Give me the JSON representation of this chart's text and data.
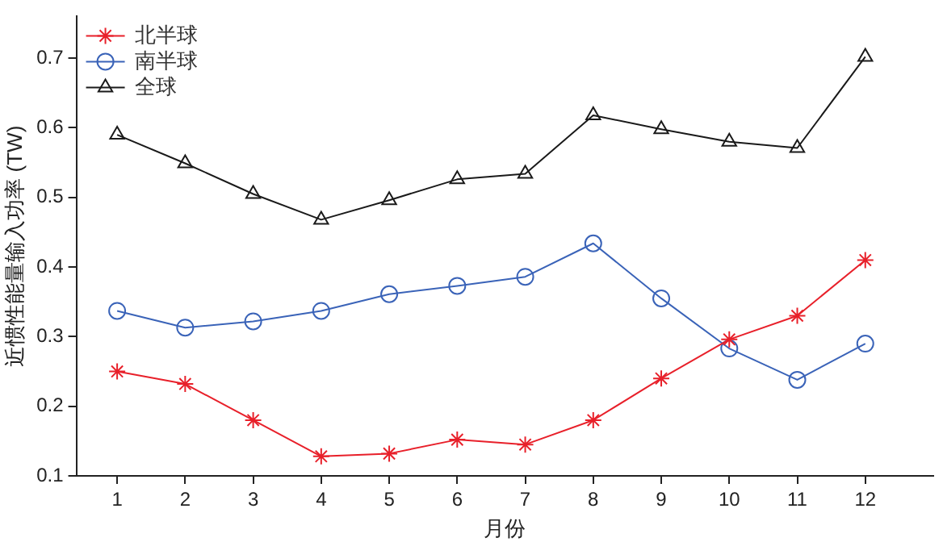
{
  "chart_data": {
    "type": "line",
    "xlabel": "月份",
    "ylabel": "近惯性能量输入功率 (TW)",
    "x": [
      1,
      2,
      3,
      4,
      5,
      6,
      7,
      8,
      9,
      10,
      11,
      12
    ],
    "xlim": [
      0.4,
      13
    ],
    "xticks": [
      1,
      2,
      3,
      4,
      5,
      6,
      7,
      8,
      9,
      10,
      11,
      12
    ],
    "ylim": [
      0.1,
      0.76
    ],
    "yticks": [
      0.1,
      0.2,
      0.3,
      0.4,
      0.5,
      0.6,
      0.7
    ],
    "grid": false,
    "legend": "top left",
    "series": [
      {
        "name": "北半球",
        "color": "#e8202a",
        "marker": "cross",
        "values": [
          0.25,
          0.232,
          0.18,
          0.128,
          0.132,
          0.152,
          0.145,
          0.18,
          0.24,
          0.296,
          0.33,
          0.41
        ]
      },
      {
        "name": "南半球",
        "color": "#3a63b8",
        "marker": "circle",
        "values": [
          0.337,
          0.313,
          0.322,
          0.337,
          0.361,
          0.373,
          0.386,
          0.434,
          0.355,
          0.283,
          0.238,
          0.29
        ]
      },
      {
        "name": "全球",
        "color": "#1a1a1a",
        "marker": "triangle",
        "values": [
          0.59,
          0.549,
          0.505,
          0.468,
          0.496,
          0.526,
          0.534,
          0.618,
          0.598,
          0.58,
          0.571,
          0.702
        ]
      }
    ]
  }
}
